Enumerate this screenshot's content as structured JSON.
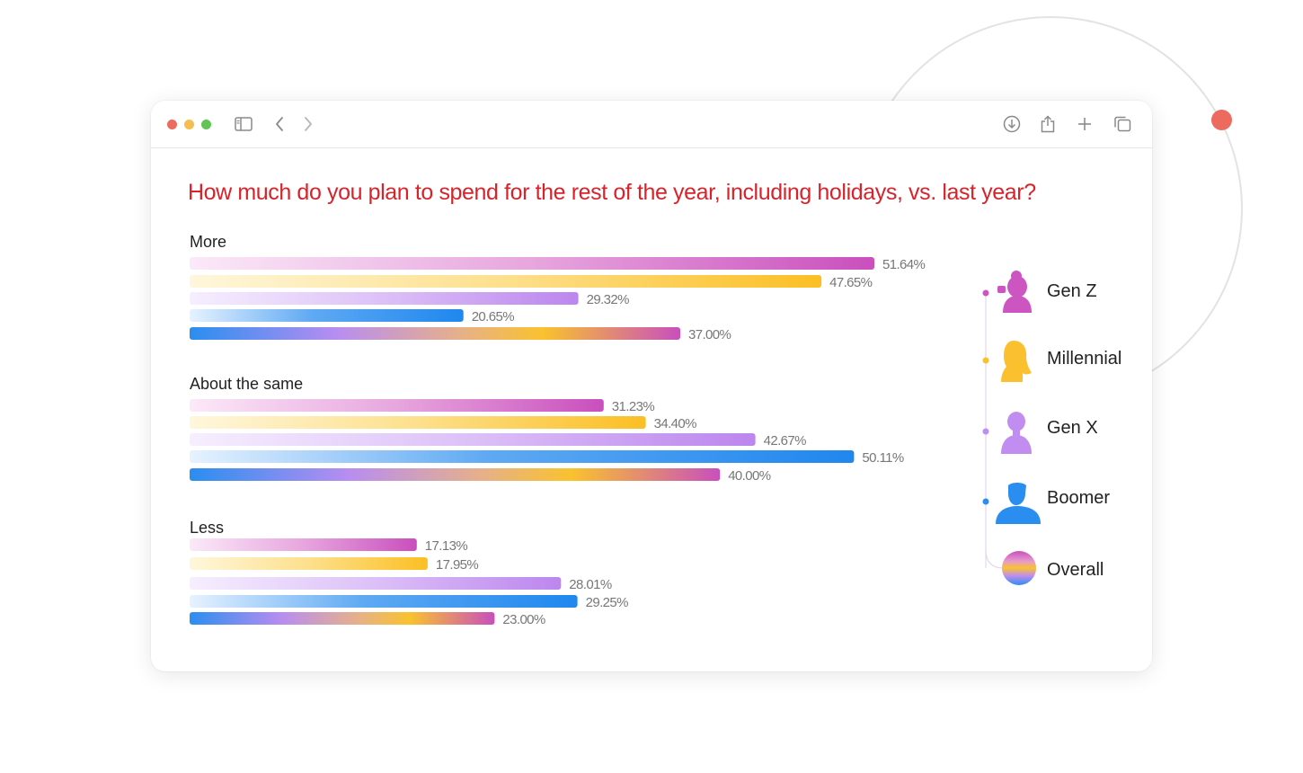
{
  "colors": {
    "genz": "#cc55c2",
    "millennial": "#fbc02d",
    "genx": "#c28df0",
    "boomer": "#2a8ef0",
    "title": "#d8232a"
  },
  "toolbar": {
    "icons": [
      "sidebar-icon",
      "back-icon",
      "forward-icon",
      "download-icon",
      "share-icon",
      "new-tab-icon",
      "tabs-overview-icon"
    ]
  },
  "chart_data": {
    "type": "bar",
    "orientation": "horizontal",
    "title": "How much do you plan to spend for the rest of the year, including holidays, vs. last year?",
    "categories": [
      "More",
      "About the same",
      "Less"
    ],
    "series": [
      {
        "name": "Gen Z",
        "values": [
          51.64,
          31.23,
          17.13
        ],
        "labels": [
          "51.64%",
          "31.23%",
          "17.13%"
        ]
      },
      {
        "name": "Millennial",
        "values": [
          47.65,
          34.4,
          17.95
        ],
        "labels": [
          "47.65%",
          "34.40%",
          "17.95%"
        ]
      },
      {
        "name": "Gen X",
        "values": [
          29.32,
          42.67,
          28.01
        ],
        "labels": [
          "29.32%",
          "42.67%",
          "28.01%"
        ]
      },
      {
        "name": "Boomer",
        "values": [
          20.65,
          50.11,
          29.25
        ],
        "labels": [
          "20.65%",
          "50.11%",
          "29.25%"
        ]
      },
      {
        "name": "Overall",
        "values": [
          37.0,
          40.0,
          23.0
        ],
        "labels": [
          "37.00%",
          "40.00%",
          "23.00%"
        ]
      }
    ],
    "xlim": [
      0,
      60
    ],
    "grid": false,
    "legend": "right"
  }
}
